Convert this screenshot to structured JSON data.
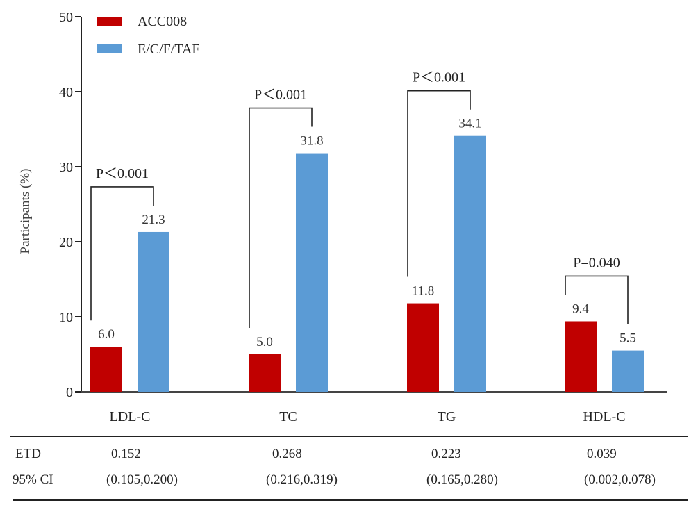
{
  "chart_data": {
    "type": "bar",
    "title": "",
    "xlabel": "",
    "ylabel": "Participants (%)",
    "ylim": [
      0,
      50
    ],
    "yticks": [
      0,
      10,
      20,
      30,
      40,
      50
    ],
    "grid": false,
    "legend_position": "top-left",
    "categories": [
      "LDL-C",
      "TC",
      "TG",
      "HDL-C"
    ],
    "series": [
      {
        "name": "ACC008",
        "color": "#C00000",
        "values": [
          6.0,
          5.0,
          11.8,
          9.4
        ],
        "labels": [
          "6.0",
          "5.0",
          "11.8",
          "9.4"
        ]
      },
      {
        "name": "E/C/F/TAF",
        "color": "#5B9BD5",
        "values": [
          21.3,
          31.8,
          34.1,
          5.5
        ],
        "labels": [
          "21.3",
          "31.8",
          "34.1",
          "5.5"
        ]
      }
    ],
    "annotations": [
      {
        "category": "LDL-C",
        "text": "P＜0.001"
      },
      {
        "category": "TC",
        "text": "P＜0.001"
      },
      {
        "category": "TG",
        "text": "P＜0.001"
      },
      {
        "category": "HDL-C",
        "text": "P=0.040"
      }
    ]
  },
  "table": {
    "rows": [
      {
        "label": "ETD",
        "values": [
          "0.152",
          "0.268",
          "0.223",
          "0.039"
        ]
      },
      {
        "label": "95% CI",
        "values": [
          "(0.105,0.200)",
          "(0.216,0.319)",
          "(0.165,0.280)",
          "(0.002,0.078)"
        ]
      }
    ]
  }
}
